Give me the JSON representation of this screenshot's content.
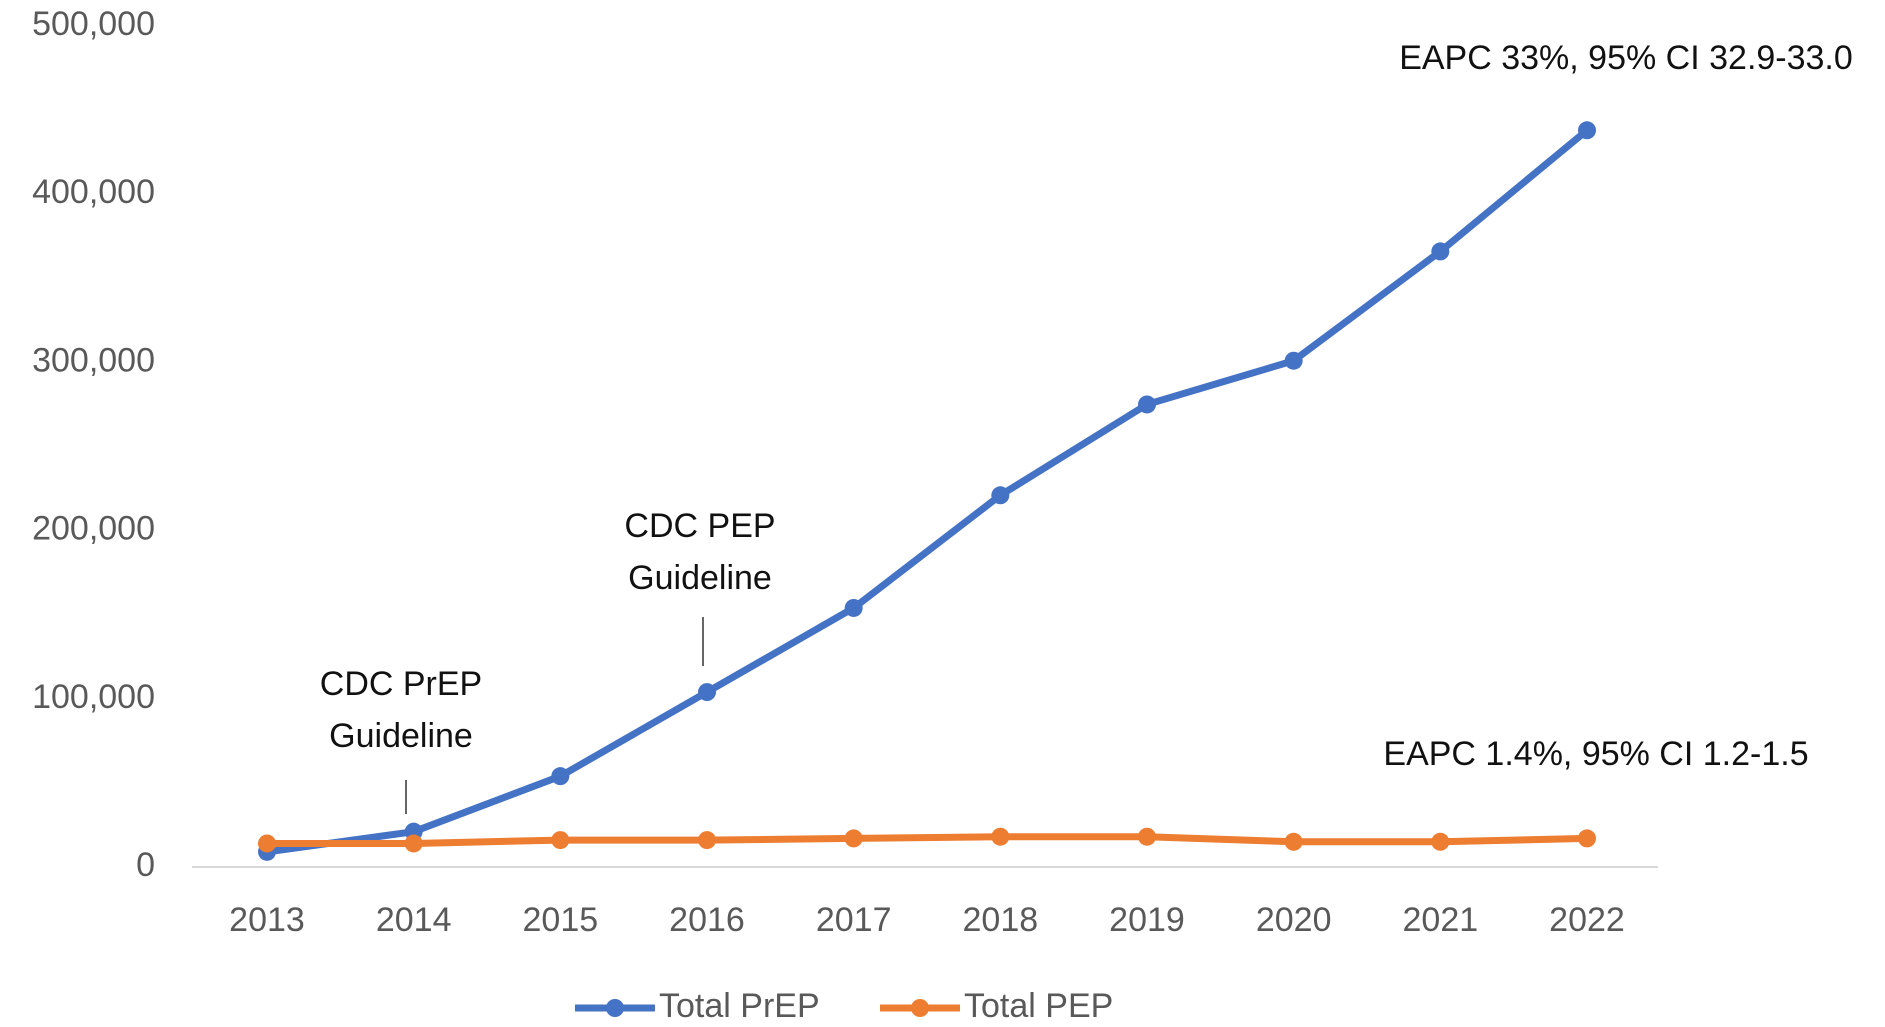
{
  "chart_data": {
    "type": "line",
    "categories": [
      "2013",
      "2014",
      "2015",
      "2016",
      "2017",
      "2018",
      "2019",
      "2020",
      "2021",
      "2022"
    ],
    "series": [
      {
        "name": "Total PrEP",
        "color": "#4472c4",
        "values": [
          9000,
          21000,
          54000,
          104000,
          154000,
          221000,
          275000,
          301000,
          366000,
          438000
        ]
      },
      {
        "name": "Total PEP",
        "color": "#ed7d31",
        "values": [
          14000,
          14000,
          16000,
          16000,
          17000,
          18000,
          18000,
          15000,
          15000,
          17000
        ]
      }
    ],
    "ylim": [
      0,
      500000
    ],
    "yticks": [
      0,
      {
        "value": 100000,
        "label": "100,000"
      },
      {
        "value": 200000,
        "label": "200,000"
      },
      {
        "value": 300000,
        "label": "300,000"
      },
      {
        "value": 400000,
        "label": "400,000"
      },
      {
        "value": 500000,
        "label": "500,000"
      }
    ],
    "grid": false,
    "legend": "bottom",
    "annotations": [
      {
        "lines": [
          "EAPC 33%, 95% CI 32.9-33.0"
        ]
      },
      {
        "lines": [
          "EAPC 1.4%, 95% CI 1.2-1.5"
        ]
      },
      {
        "lines": [
          "CDC PrEP",
          "Guideline"
        ]
      },
      {
        "lines": [
          "CDC PEP",
          "Guideline"
        ]
      }
    ]
  }
}
